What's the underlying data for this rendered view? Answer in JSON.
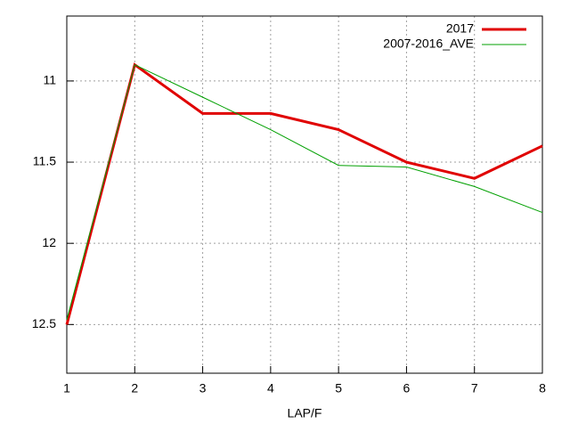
{
  "chart_data": {
    "type": "line",
    "x_label": "LAP/F",
    "x": [
      1,
      2,
      3,
      4,
      5,
      6,
      7,
      8
    ],
    "series": [
      {
        "name": "2017",
        "color": "#e00000",
        "width": 3,
        "values": [
          12.5,
          10.9,
          11.2,
          11.2,
          11.3,
          11.5,
          11.6,
          11.4
        ]
      },
      {
        "name": "2007-2016_AVE",
        "color": "#00a000",
        "width": 1,
        "values": [
          12.47,
          10.9,
          11.1,
          11.3,
          11.52,
          11.53,
          11.65,
          11.81
        ]
      }
    ],
    "xlim": [
      1,
      8
    ],
    "xticks": [
      1,
      2,
      3,
      4,
      5,
      6,
      7,
      8
    ],
    "ylim": [
      12.8,
      10.6
    ],
    "yticks": [
      11,
      11.5,
      12,
      12.5
    ],
    "grid": true,
    "legend": "top-right"
  }
}
